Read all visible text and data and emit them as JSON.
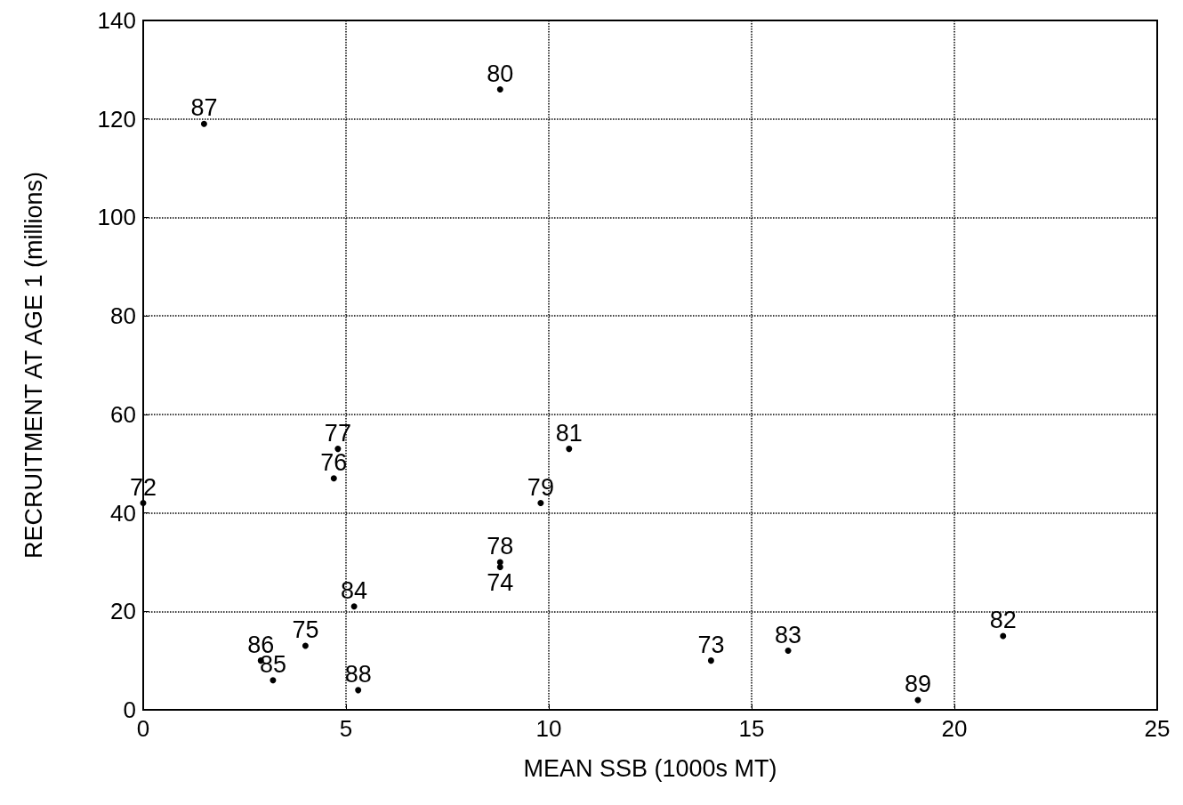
{
  "chart_data": {
    "type": "scatter",
    "xlabel": "MEAN SSB (1000s MT)",
    "ylabel": "RECRUITMENT AT AGE 1 (millions)",
    "series": [
      {
        "name": "87",
        "color": "#000000",
        "x": [
          1.5
        ],
        "values": [
          119
        ]
      },
      {
        "name": "80",
        "color": "#000000",
        "x": [
          8.8
        ],
        "values": [
          126
        ]
      },
      {
        "name": "77",
        "color": "#000000",
        "x": [
          4.8
        ],
        "values": [
          53
        ]
      },
      {
        "name": "76",
        "color": "#000000",
        "x": [
          4.7
        ],
        "values": [
          47
        ]
      },
      {
        "name": "72",
        "color": "#000000",
        "x": [
          0.0
        ],
        "values": [
          42
        ]
      },
      {
        "name": "81",
        "color": "#000000",
        "x": [
          10.5
        ],
        "values": [
          53
        ]
      },
      {
        "name": "79",
        "color": "#000000",
        "x": [
          9.8
        ],
        "values": [
          42
        ]
      },
      {
        "name": "78",
        "color": "#000000",
        "x": [
          8.8
        ],
        "values": [
          30
        ]
      },
      {
        "name": "74",
        "color": "#000000",
        "x": [
          8.8
        ],
        "values": [
          29
        ]
      },
      {
        "name": "84",
        "color": "#000000",
        "x": [
          5.2
        ],
        "values": [
          21
        ]
      },
      {
        "name": "75",
        "color": "#000000",
        "x": [
          4.0
        ],
        "values": [
          13
        ]
      },
      {
        "name": "86",
        "color": "#000000",
        "x": [
          2.9
        ],
        "values": [
          10
        ]
      },
      {
        "name": "85",
        "color": "#000000",
        "x": [
          3.2
        ],
        "values": [
          6
        ]
      },
      {
        "name": "88",
        "color": "#000000",
        "x": [
          5.3
        ],
        "values": [
          4
        ]
      },
      {
        "name": "73",
        "color": "#000000",
        "x": [
          14.0
        ],
        "values": [
          10
        ]
      },
      {
        "name": "83",
        "color": "#000000",
        "x": [
          15.9
        ],
        "values": [
          12
        ]
      },
      {
        "name": "82",
        "color": "#000000",
        "x": [
          21.2
        ],
        "values": [
          15
        ]
      },
      {
        "name": "89",
        "color": "#000000",
        "x": [
          19.1
        ],
        "values": [
          2
        ]
      }
    ],
    "marker": "none",
    "xlim": [
      0,
      25
    ],
    "xticks": [
      0,
      5,
      10,
      15,
      20,
      25
    ],
    "ylim": [
      0,
      140
    ],
    "yticks": [
      0,
      20,
      40,
      60,
      80,
      100,
      120,
      140
    ],
    "grid": true,
    "legend": false
  }
}
